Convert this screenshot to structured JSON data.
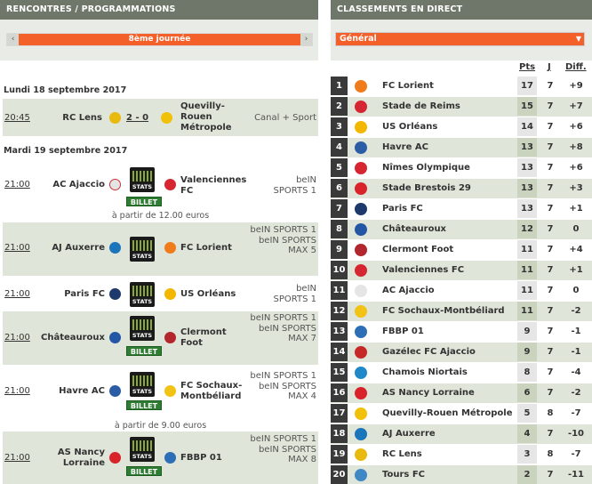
{
  "left": {
    "title": "RENCONTRES / PROGRAMMATIONS",
    "journee": "8ème journée",
    "dates": [
      {
        "label": "Lundi 18 septembre 2017"
      },
      {
        "label": "Mardi 19 septembre 2017"
      }
    ],
    "matches": [
      {
        "time": "20:45",
        "home": "RC Lens",
        "home_color": "#e8b90e",
        "score": "2 - 0",
        "away": "Quevilly-Rouen Métropole",
        "away_color": "#f1c10a",
        "tv": "Canal + Sport",
        "stats": false,
        "billet": false
      },
      {
        "time": "21:00",
        "home": "AC Ajaccio",
        "home_color": "#e5e5e5",
        "away": "Valenciennes FC",
        "away_color": "#d62631",
        "tv": "beIN SPORTS 1",
        "stats": true,
        "billet": true,
        "price": "à partir de 12.00 euros"
      },
      {
        "time": "21:00",
        "home": "AJ Auxerre",
        "home_color": "#1b75bb",
        "away": "FC Lorient",
        "away_color": "#f07b1a",
        "tv": "beIN SPORTS 1 beIN SPORTS MAX 5",
        "stats": true,
        "billet": false
      },
      {
        "time": "21:00",
        "home": "Paris FC",
        "home_color": "#1e3a6d",
        "away": "US Orléans",
        "away_color": "#f3b700",
        "tv": "beIN SPORTS 1",
        "stats": true,
        "billet": false
      },
      {
        "time": "21:00",
        "home": "Châteauroux",
        "home_color": "#2456a6",
        "away": "Clermont Foot",
        "away_color": "#b3262e",
        "tv": "beIN SPORTS 1 beIN SPORTS MAX 7",
        "stats": true,
        "billet": true
      },
      {
        "time": "21:00",
        "home": "Havre AC",
        "home_color": "#2b5da6",
        "away": "FC Sochaux-Montbéliard",
        "away_color": "#f2c215",
        "tv": "beIN SPORTS 1 beIN SPORTS MAX 4",
        "stats": true,
        "billet": true,
        "price": "à partir de 9.00 euros"
      },
      {
        "time": "21:00",
        "home": "AS Nancy Lorraine",
        "home_color": "#d8232a",
        "away": "FBBP 01",
        "away_color": "#2c6fb7",
        "tv": "beIN SPORTS 1 beIN SPORTS MAX 8",
        "stats": true,
        "billet": true
      }
    ],
    "stats_label": "STATS",
    "billet_label": "BILLET"
  },
  "right": {
    "title": "CLASSEMENTS EN DIRECT",
    "select": "Général",
    "cols": {
      "pts": "Pts",
      "j": "J",
      "diff": "Diff."
    },
    "rows": [
      {
        "rank": "1",
        "team": "FC Lorient",
        "pts": "17",
        "j": "7",
        "diff": "+9",
        "color": "#f07b1a"
      },
      {
        "rank": "2",
        "team": "Stade de Reims",
        "pts": "15",
        "j": "7",
        "diff": "+7",
        "color": "#d62631"
      },
      {
        "rank": "3",
        "team": "US Orléans",
        "pts": "14",
        "j": "7",
        "diff": "+6",
        "color": "#f3b700"
      },
      {
        "rank": "4",
        "team": "Havre AC",
        "pts": "13",
        "j": "7",
        "diff": "+8",
        "color": "#2b5da6"
      },
      {
        "rank": "5",
        "team": "Nîmes Olympique",
        "pts": "13",
        "j": "7",
        "diff": "+6",
        "color": "#d62631"
      },
      {
        "rank": "6",
        "team": "Stade Brestois 29",
        "pts": "13",
        "j": "7",
        "diff": "+3",
        "color": "#d8232a"
      },
      {
        "rank": "7",
        "team": "Paris FC",
        "pts": "13",
        "j": "7",
        "diff": "+1",
        "color": "#1e3a6d"
      },
      {
        "rank": "8",
        "team": "Châteauroux",
        "pts": "12",
        "j": "7",
        "diff": "0",
        "color": "#2456a6"
      },
      {
        "rank": "9",
        "team": "Clermont Foot",
        "pts": "11",
        "j": "7",
        "diff": "+4",
        "color": "#b3262e"
      },
      {
        "rank": "10",
        "team": "Valenciennes FC",
        "pts": "11",
        "j": "7",
        "diff": "+1",
        "color": "#d62631"
      },
      {
        "rank": "11",
        "team": "AC Ajaccio",
        "pts": "11",
        "j": "7",
        "diff": "0",
        "color": "#e5e5e5"
      },
      {
        "rank": "12",
        "team": "FC Sochaux-Montbéliard",
        "pts": "11",
        "j": "7",
        "diff": "-2",
        "color": "#f2c215"
      },
      {
        "rank": "13",
        "team": "FBBP 01",
        "pts": "9",
        "j": "7",
        "diff": "-1",
        "color": "#2c6fb7"
      },
      {
        "rank": "14",
        "team": "Gazélec FC Ajaccio",
        "pts": "9",
        "j": "7",
        "diff": "-1",
        "color": "#c62828"
      },
      {
        "rank": "15",
        "team": "Chamois Niortais",
        "pts": "8",
        "j": "7",
        "diff": "-4",
        "color": "#1e88c8"
      },
      {
        "rank": "16",
        "team": "AS Nancy Lorraine",
        "pts": "6",
        "j": "7",
        "diff": "-2",
        "color": "#d8232a"
      },
      {
        "rank": "17",
        "team": "Quevilly-Rouen Métropole",
        "pts": "5",
        "j": "8",
        "diff": "-7",
        "color": "#f1c10a"
      },
      {
        "rank": "18",
        "team": "AJ Auxerre",
        "pts": "4",
        "j": "7",
        "diff": "-10",
        "color": "#1b75bb"
      },
      {
        "rank": "19",
        "team": "RC Lens",
        "pts": "3",
        "j": "8",
        "diff": "-7",
        "color": "#e8b90e"
      },
      {
        "rank": "20",
        "team": "Tours FC",
        "pts": "2",
        "j": "7",
        "diff": "-11",
        "color": "#3f88c5"
      }
    ]
  }
}
